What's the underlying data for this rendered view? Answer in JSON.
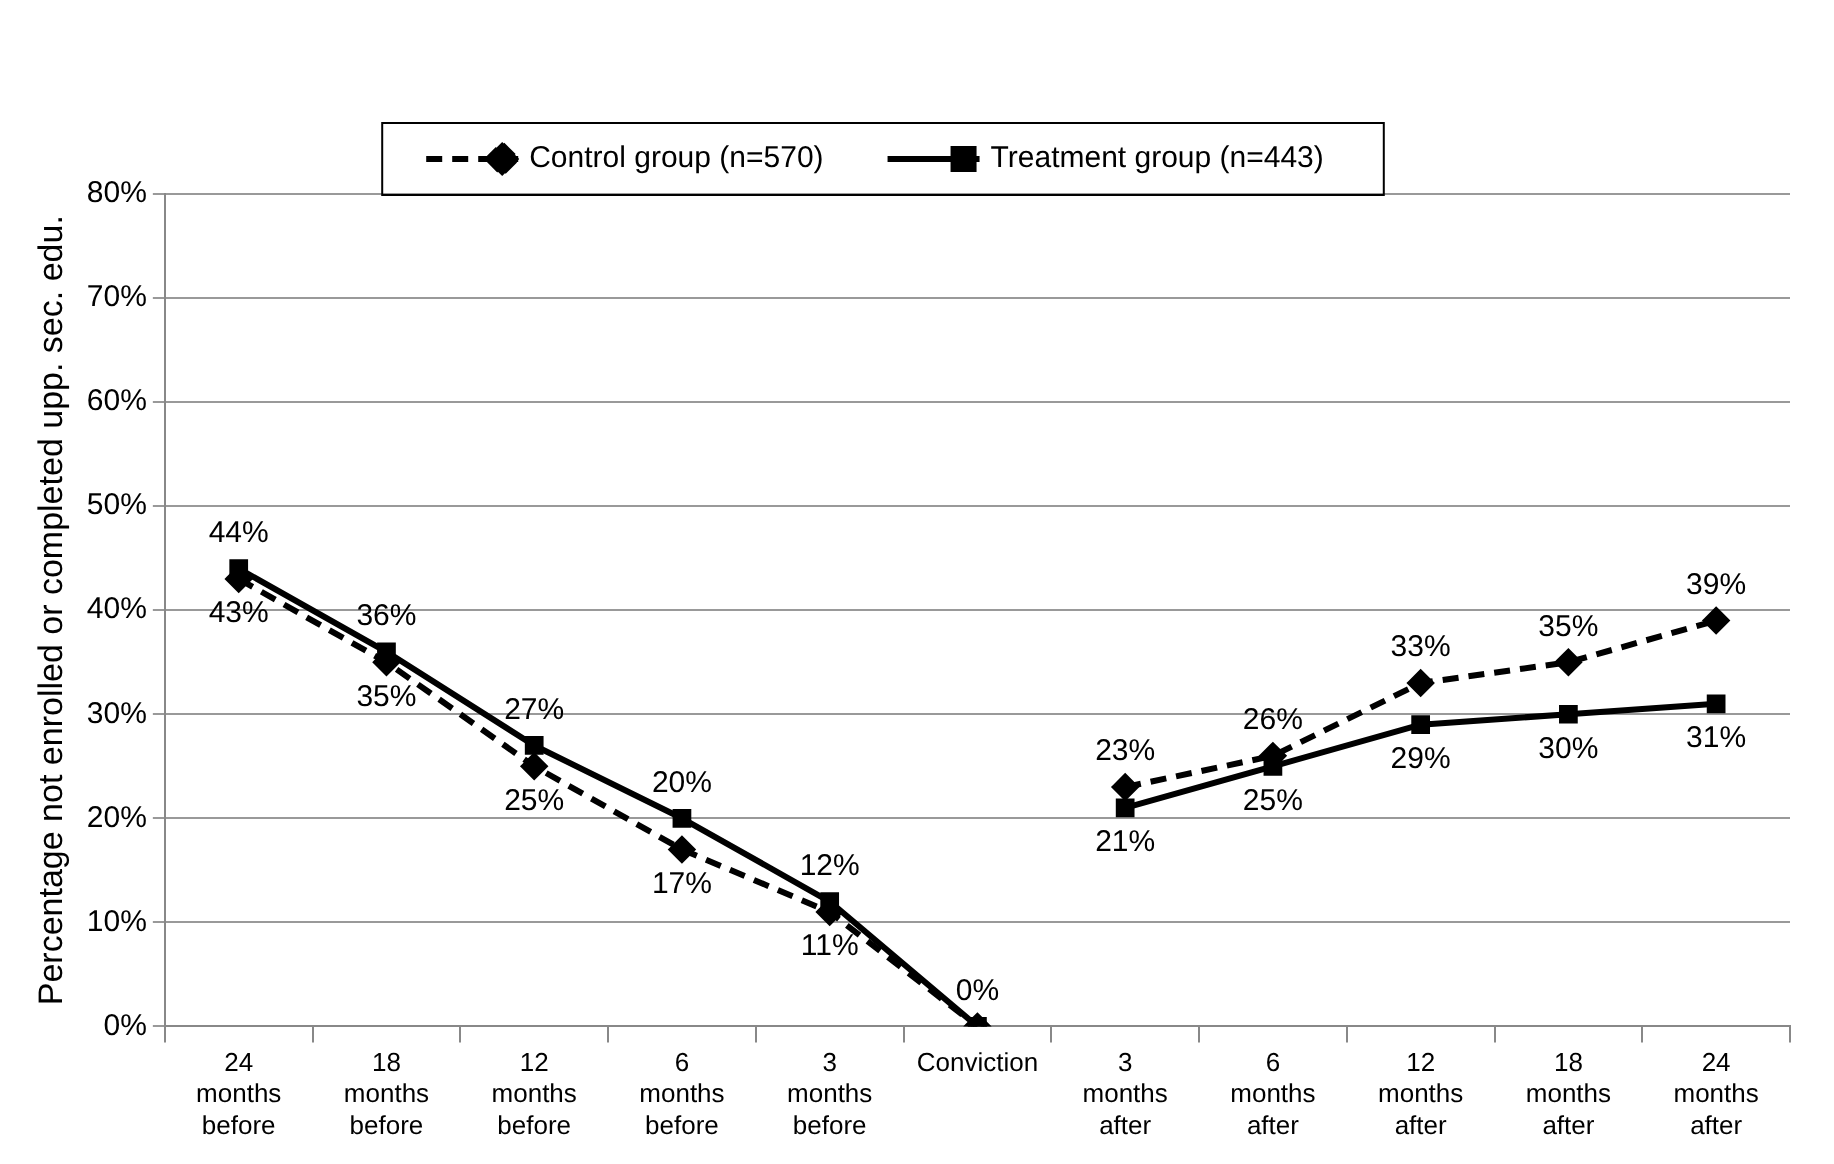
{
  "chart_data": {
    "type": "line",
    "ylabel": "Percentage not enrolled or completed upp. sec. edu.",
    "categories": [
      "24 months before",
      "18 months before",
      "12 months before",
      "6 months before",
      "3 months before",
      "Conviction",
      "3 months after",
      "6 months after",
      "12 months after",
      "18 months after",
      "24 months after"
    ],
    "series": [
      {
        "name": "Control group (n=570)",
        "color": "#000000",
        "marker": "diamond",
        "line_style": "dashed",
        "values": [
          43,
          35,
          25,
          17,
          11,
          0,
          null,
          null,
          null,
          null,
          null
        ],
        "value_labels": [
          "43%",
          "35%",
          "25%",
          "17%",
          "11%",
          null,
          null,
          null,
          null,
          null,
          null
        ]
      },
      {
        "name": "Treatment group (n=443)",
        "color": "#000000",
        "marker": "square",
        "line_style": "solid",
        "values": [
          44,
          36,
          27,
          20,
          12,
          0,
          null,
          null,
          null,
          null,
          null
        ],
        "value_labels": [
          "44%",
          "36%",
          "27%",
          "20%",
          "12%",
          "0%",
          null,
          null,
          null,
          null,
          null
        ]
      },
      {
        "color": "#000000",
        "marker": "diamond",
        "line_style": "dashed",
        "values": [
          null,
          null,
          null,
          null,
          null,
          null,
          23,
          26,
          33,
          35,
          39
        ],
        "value_labels": [
          null,
          null,
          null,
          null,
          null,
          null,
          "23%",
          "26%",
          "33%",
          "35%",
          "39%"
        ]
      },
      {
        "color": "#000000",
        "marker": "square",
        "line_style": "solid",
        "values": [
          null,
          null,
          null,
          null,
          null,
          null,
          21,
          25,
          29,
          30,
          31
        ],
        "value_labels": [
          null,
          null,
          null,
          null,
          null,
          null,
          "21%",
          "25%",
          "29%",
          "30%",
          "31%"
        ]
      }
    ],
    "ylim": [
      0,
      80
    ],
    "yticks": [
      {
        "value": 0,
        "label": "0%"
      },
      {
        "value": 10,
        "label": "10%"
      },
      {
        "value": 20,
        "label": "20%"
      },
      {
        "value": 30,
        "label": "30%"
      },
      {
        "value": 40,
        "label": "40%"
      },
      {
        "value": 50,
        "label": "50%"
      },
      {
        "value": 60,
        "label": "60%"
      },
      {
        "value": 70,
        "label": "70%"
      },
      {
        "value": 80,
        "label": "80%"
      }
    ],
    "grid": "y",
    "legend": "top"
  }
}
